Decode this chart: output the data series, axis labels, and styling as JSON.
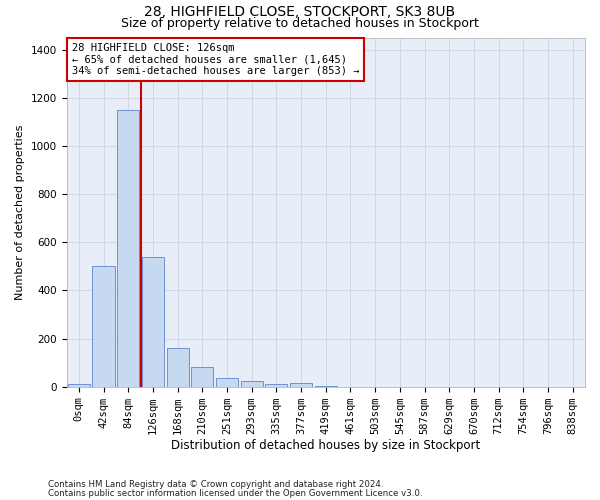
{
  "title1": "28, HIGHFIELD CLOSE, STOCKPORT, SK3 8UB",
  "title2": "Size of property relative to detached houses in Stockport",
  "xlabel": "Distribution of detached houses by size in Stockport",
  "ylabel": "Number of detached properties",
  "footnote1": "Contains HM Land Registry data © Crown copyright and database right 2024.",
  "footnote2": "Contains public sector information licensed under the Open Government Licence v3.0.",
  "bar_labels": [
    "0sqm",
    "42sqm",
    "84sqm",
    "126sqm",
    "168sqm",
    "210sqm",
    "251sqm",
    "293sqm",
    "335sqm",
    "377sqm",
    "419sqm",
    "461sqm",
    "503sqm",
    "545sqm",
    "587sqm",
    "629sqm",
    "670sqm",
    "712sqm",
    "754sqm",
    "796sqm",
    "838sqm"
  ],
  "bar_values": [
    10,
    500,
    1150,
    540,
    160,
    80,
    35,
    25,
    10,
    15,
    5,
    0,
    0,
    0,
    0,
    0,
    0,
    0,
    0,
    0,
    0
  ],
  "bar_color": "#c6d9f0",
  "bar_edgecolor": "#4472c4",
  "redline_index": 3,
  "redline_label": "28 HIGHFIELD CLOSE: 126sqm",
  "redline_text1": "← 65% of detached houses are smaller (1,645)",
  "redline_text2": "34% of semi-detached houses are larger (853) →",
  "redline_color": "#cc0000",
  "annotation_box_edgecolor": "#cc0000",
  "ylim": [
    0,
    1450
  ],
  "yticks": [
    0,
    200,
    400,
    600,
    800,
    1000,
    1200,
    1400
  ],
  "grid_color": "#d0d8e8",
  "background_color": "#e8eef8",
  "bar_width": 0.9,
  "title1_fontsize": 10,
  "title2_fontsize": 9,
  "xlabel_fontsize": 8.5,
  "ylabel_fontsize": 8,
  "tick_fontsize": 7.5,
  "annot_fontsize": 7.5
}
